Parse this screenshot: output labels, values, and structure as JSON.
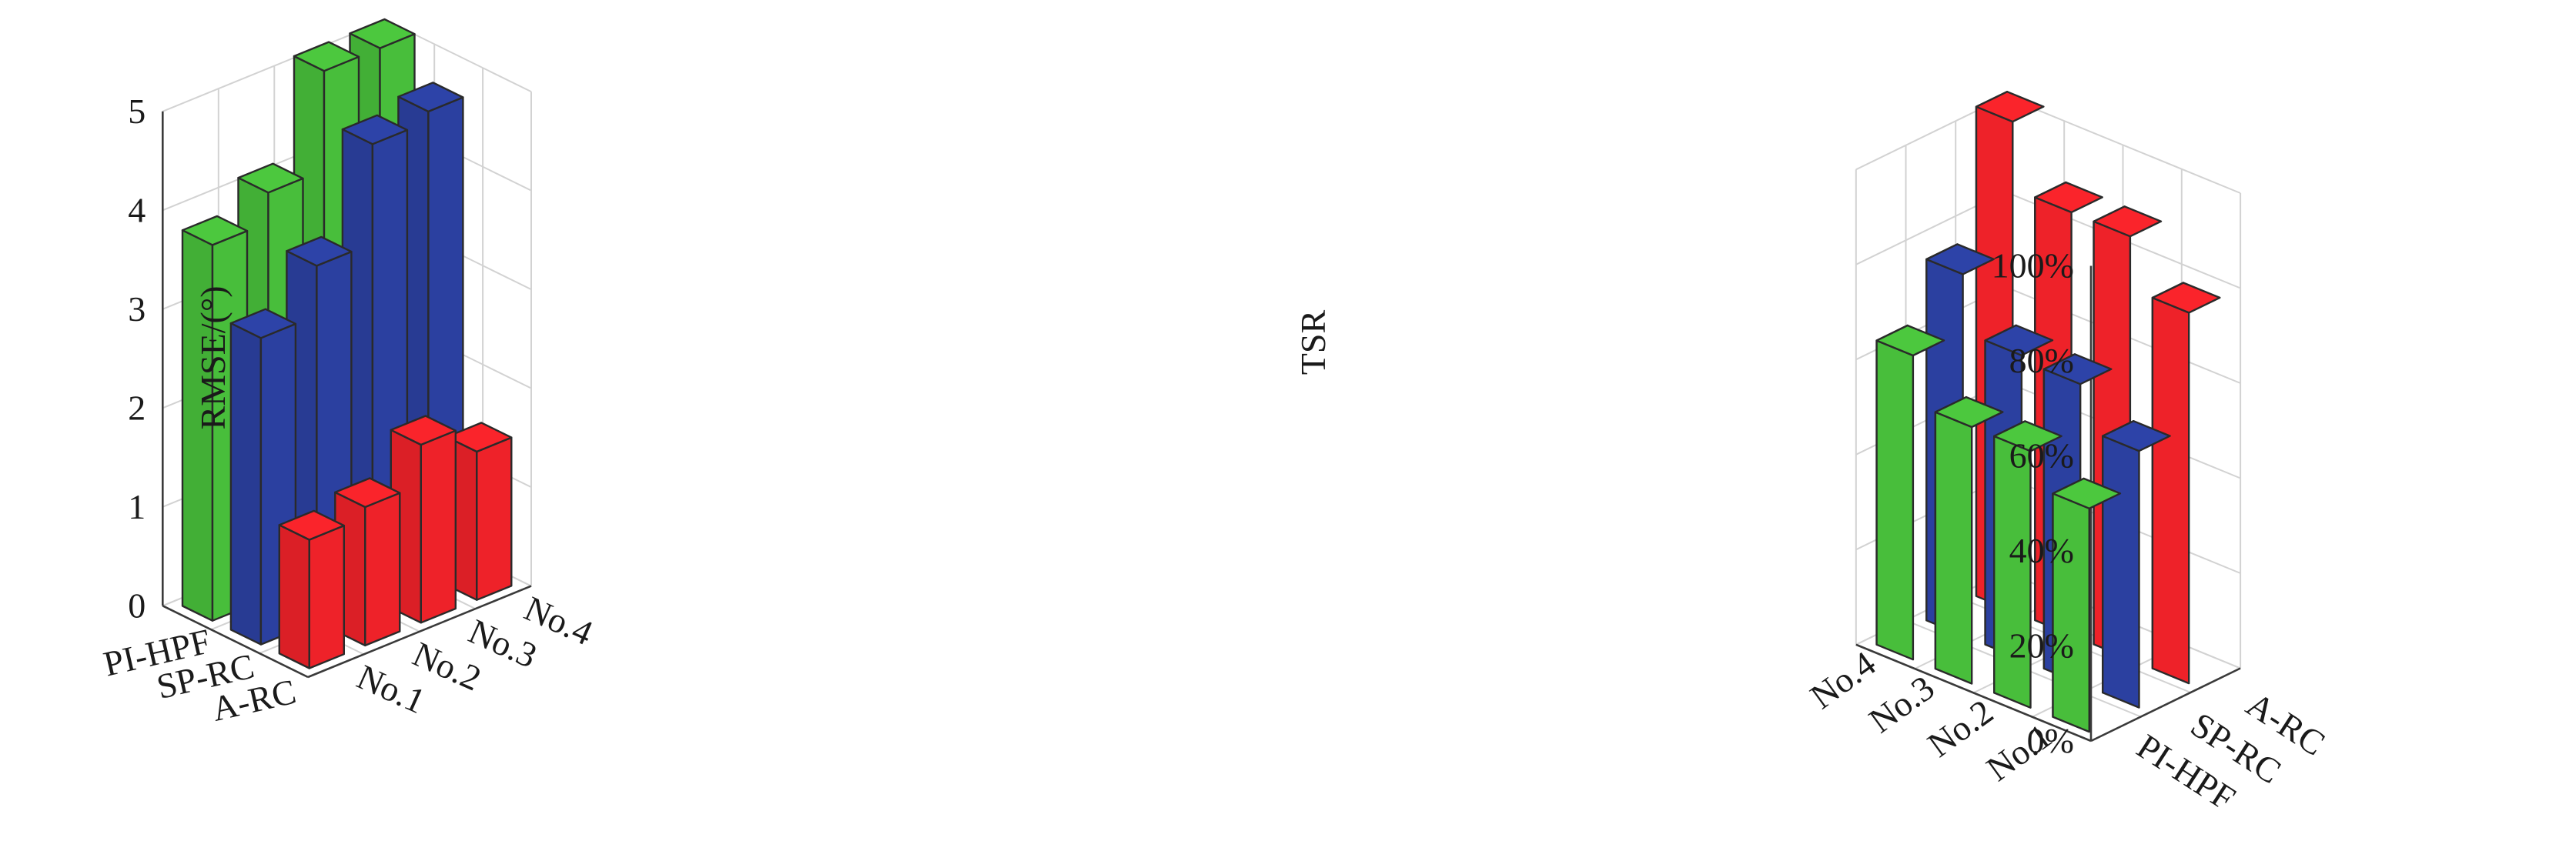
{
  "colors": {
    "A-RC": "#ee2229",
    "SP-RC": "#2b40a0",
    "PI-HPF": "#48be3b"
  },
  "charts": {
    "left": {
      "ylabel": "RMSE/(°)",
      "yticks": [
        "0",
        "1",
        "2",
        "3",
        "4",
        "5"
      ]
    },
    "right": {
      "ylabel": "TSR",
      "yticks": [
        "0%",
        "20%",
        "40%",
        "60%",
        "80%",
        "100%"
      ]
    }
  },
  "chart_data": [
    {
      "type": "bar3d",
      "title": "",
      "ylabel": "RMSE/(°)",
      "ylim": [
        0,
        5
      ],
      "categories": [
        "No.1",
        "No.2",
        "No.3",
        "No.4"
      ],
      "series": [
        {
          "name": "PI-HPF",
          "values": [
            3.8,
            4.1,
            5.1,
            5.1
          ]
        },
        {
          "name": "SP-RC",
          "values": [
            3.1,
            3.6,
            4.6,
            4.7
          ]
        },
        {
          "name": "A-RC",
          "values": [
            1.3,
            1.4,
            1.8,
            1.5
          ]
        }
      ]
    },
    {
      "type": "bar3d",
      "title": "",
      "ylabel": "TSR",
      "ylim": [
        0,
        100
      ],
      "categories": [
        "No.4",
        "No.3",
        "No.2",
        "No.1"
      ],
      "series": [
        {
          "name": "PI-HPF",
          "values": [
            64,
            54,
            54,
            47
          ]
        },
        {
          "name": "SP-RC",
          "values": [
            76,
            64,
            63,
            54
          ]
        },
        {
          "name": "A-RC",
          "values": [
            103,
            89,
            89,
            78
          ]
        }
      ]
    }
  ]
}
